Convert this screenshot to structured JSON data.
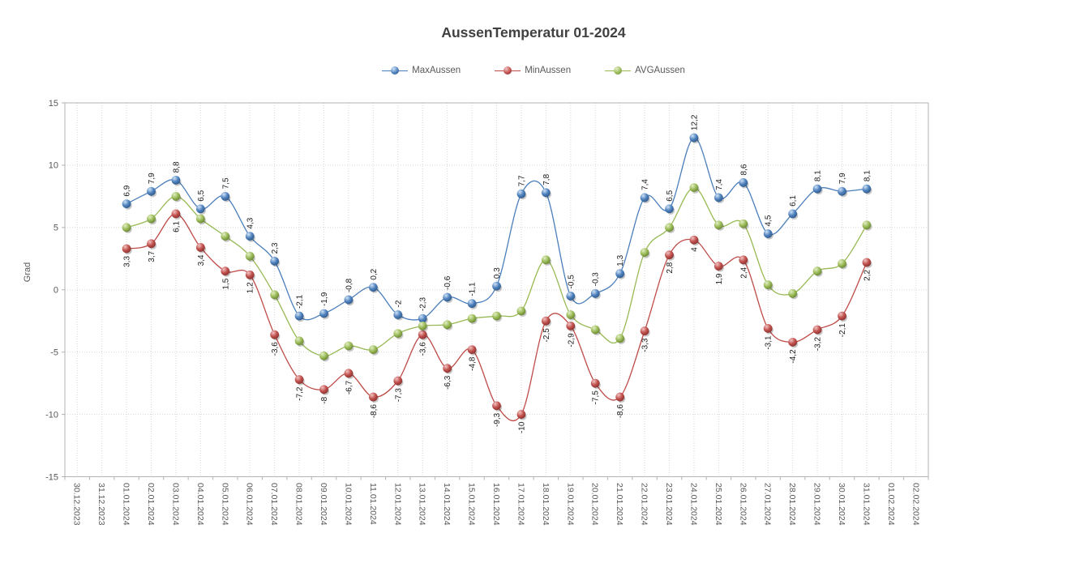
{
  "chart_data": {
    "type": "line",
    "title": "AussenTemperatur 01-2024",
    "ylabel": "Grad",
    "ylim": [
      -15,
      15
    ],
    "yticks": [
      15,
      10,
      5,
      0,
      -5,
      -10,
      -15
    ],
    "grid": true,
    "legend_position": "top",
    "smooth_lines": true,
    "axis_text_color": "#595959",
    "label_text_color": "#1a1a1a",
    "grid_color": "#d6d6d6",
    "border_color": "#b3b3b3",
    "title_color": "#404040",
    "categories": [
      "30.12.2023",
      "31.12.2023",
      "01.01.2024",
      "02.01.2024",
      "03.01.2024",
      "04.01.2024",
      "05.01.2024",
      "06.01.2024",
      "07.01.2024",
      "08.01.2024",
      "09.01.2024",
      "10.01.2024",
      "11.01.2024",
      "12.01.2024",
      "13.01.2024",
      "14.01.2024",
      "15.01.2024",
      "16.01.2024",
      "17.01.2024",
      "18.01.2024",
      "19.01.2024",
      "20.01.2024",
      "21.01.2024",
      "22.01.2024",
      "23.01.2024",
      "24.01.2024",
      "25.01.2024",
      "26.01.2024",
      "27.01.2024",
      "28.01.2024",
      "29.01.2024",
      "30.01.2024",
      "31.01.2024",
      "01.02.2024",
      "02.02.2024"
    ],
    "x_start_index": 2,
    "series": [
      {
        "name": "MaxAussen",
        "color": "#4a7ebb",
        "marker": {
          "light": "#cfe3f7",
          "base": "#4f81bd",
          "dark": "#29517f"
        },
        "label_side": "above",
        "values": [
          6.9,
          7.9,
          8.8,
          6.5,
          7.5,
          4.3,
          2.3,
          -2.1,
          -1.9,
          -0.8,
          0.2,
          -2,
          -2.3,
          -0.6,
          -1.1,
          0.3,
          7.7,
          7.8,
          -0.5,
          -0.3,
          1.3,
          7.4,
          6.5,
          12.2,
          7.4,
          8.6,
          4.5,
          6.1,
          8.1,
          7.9,
          8.1
        ],
        "labels": [
          "6,9",
          "7,9",
          "8,8",
          "6,5",
          "7,5",
          "4,3",
          "2,3",
          "-2,1",
          "-1,9",
          "-0,8",
          "0,2",
          "-2",
          "-2,3",
          "-0,6",
          "-1,1",
          "0,3",
          "7,7",
          "7,8",
          "-0,5",
          "-0,3",
          "1,3",
          "7,4",
          "6,5",
          "12,2",
          "7,4",
          "8,6",
          "4,5",
          "6,1",
          "8,1",
          "7,9",
          "8,1"
        ]
      },
      {
        "name": "MinAussen",
        "color": "#be4b48",
        "marker": {
          "light": "#f2c4c3",
          "base": "#c0504d",
          "dark": "#7d2b29"
        },
        "label_side": "below",
        "values": [
          3.3,
          3.7,
          6.1,
          3.4,
          1.5,
          1.2,
          -3.6,
          -7.2,
          -8,
          -6.7,
          -8.6,
          -7.3,
          -3.6,
          -6.3,
          -4.8,
          -9.3,
          -10,
          -2.5,
          -2.9,
          -7.5,
          -8.6,
          -3.3,
          2.8,
          4,
          1.9,
          2.4,
          -3.1,
          -4.2,
          -3.2,
          -2.1,
          2.2
        ],
        "labels": [
          "3,3",
          "3,7",
          "6,1",
          "3,4",
          "1,5",
          "1,2",
          "-3,6",
          "-7,2",
          "-8",
          "-6,7",
          "-8,6",
          "-7,3",
          "-3,6",
          "-6,3",
          "-4,8",
          "-9,3",
          "-10",
          "-2,5",
          "-2,9",
          "-7,5",
          "-8,6",
          "-3,3",
          "2,8",
          "4",
          "1,9",
          "2,4",
          "-3,1",
          "-4,2",
          "-3,2",
          "-2,1",
          "2,2"
        ]
      },
      {
        "name": "AVGAussen",
        "color": "#98b954",
        "marker": {
          "light": "#e3efc5",
          "base": "#9bbb59",
          "dark": "#5d792b"
        },
        "label_side": "none",
        "values": [
          5.0,
          5.7,
          7.5,
          5.7,
          4.3,
          2.7,
          -0.4,
          -4.1,
          -5.3,
          -4.5,
          -4.8,
          -3.5,
          -2.9,
          -2.8,
          -2.3,
          -2.1,
          -1.7,
          2.4,
          -2.0,
          -3.2,
          -3.9,
          3.0,
          5.0,
          8.2,
          5.2,
          5.3,
          0.4,
          -0.3,
          1.5,
          2.1,
          5.2
        ],
        "labels": []
      }
    ]
  }
}
